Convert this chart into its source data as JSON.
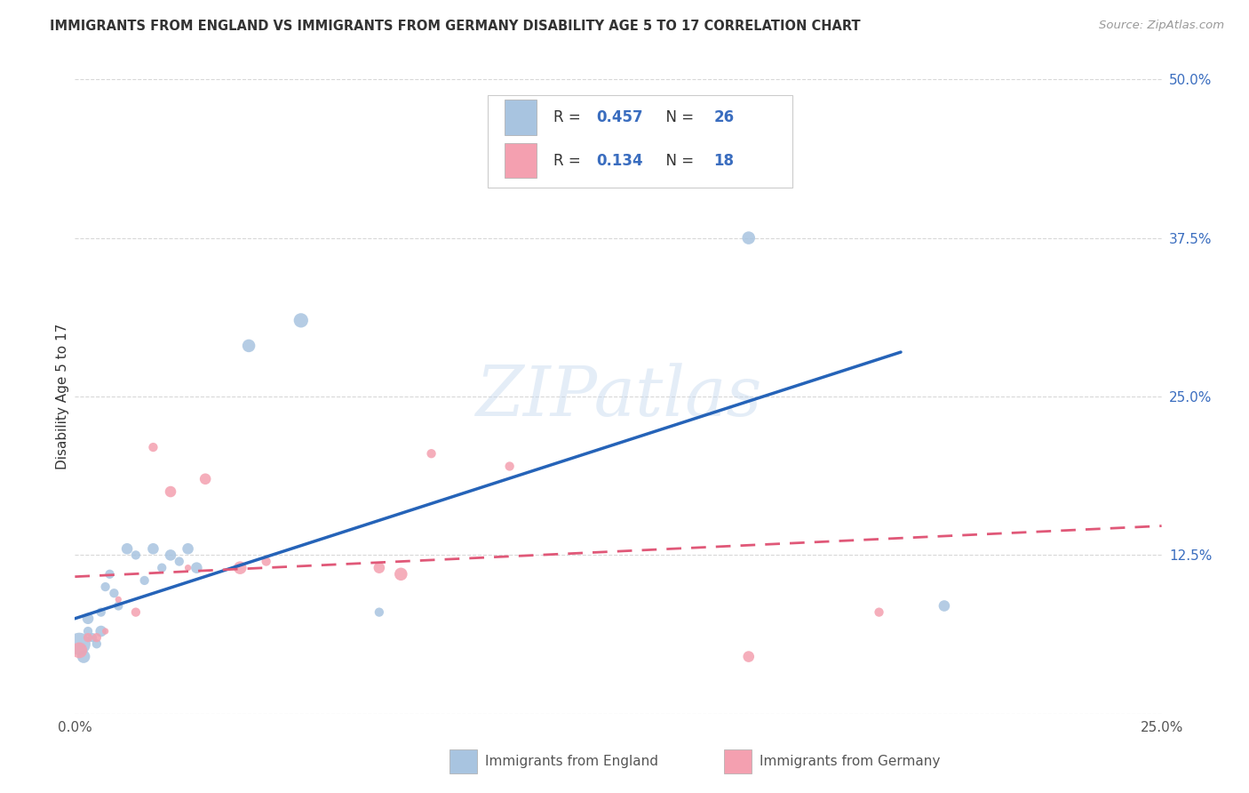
{
  "title": "IMMIGRANTS FROM ENGLAND VS IMMIGRANTS FROM GERMANY DISABILITY AGE 5 TO 17 CORRELATION CHART",
  "source": "Source: ZipAtlas.com",
  "ylabel": "Disability Age 5 to 17",
  "xlim": [
    0.0,
    0.25
  ],
  "ylim": [
    0.0,
    0.5
  ],
  "xticks": [
    0.0,
    0.05,
    0.1,
    0.15,
    0.2,
    0.25
  ],
  "yticks": [
    0.0,
    0.125,
    0.25,
    0.375,
    0.5
  ],
  "xticklabels": [
    "0.0%",
    "",
    "",
    "",
    "",
    "25.0%"
  ],
  "yticklabels": [
    "",
    "12.5%",
    "25.0%",
    "37.5%",
    "50.0%"
  ],
  "england_color": "#a8c4e0",
  "england_line_color": "#2563b8",
  "germany_color": "#f4a0b0",
  "germany_line_color": "#e05878",
  "tick_color": "#3a6dbf",
  "watermark_text": "ZIPatlas",
  "england_x": [
    0.001,
    0.002,
    0.003,
    0.003,
    0.004,
    0.005,
    0.006,
    0.006,
    0.007,
    0.008,
    0.009,
    0.01,
    0.012,
    0.014,
    0.016,
    0.018,
    0.02,
    0.022,
    0.024,
    0.026,
    0.028,
    0.04,
    0.052,
    0.07,
    0.155,
    0.2
  ],
  "england_y": [
    0.055,
    0.045,
    0.065,
    0.075,
    0.06,
    0.055,
    0.065,
    0.08,
    0.1,
    0.11,
    0.095,
    0.085,
    0.13,
    0.125,
    0.105,
    0.13,
    0.115,
    0.125,
    0.12,
    0.13,
    0.115,
    0.29,
    0.31,
    0.08,
    0.375,
    0.085
  ],
  "england_size": [
    600,
    200,
    100,
    150,
    100,
    100,
    150,
    100,
    100,
    100,
    100,
    100,
    150,
    100,
    100,
    150,
    100,
    150,
    100,
    150,
    150,
    200,
    250,
    100,
    200,
    150
  ],
  "germany_x": [
    0.001,
    0.003,
    0.005,
    0.007,
    0.01,
    0.014,
    0.018,
    0.022,
    0.026,
    0.03,
    0.038,
    0.044,
    0.07,
    0.075,
    0.082,
    0.1,
    0.155,
    0.185
  ],
  "germany_y": [
    0.05,
    0.06,
    0.06,
    0.065,
    0.09,
    0.08,
    0.21,
    0.175,
    0.115,
    0.185,
    0.115,
    0.12,
    0.115,
    0.11,
    0.205,
    0.195,
    0.045,
    0.08
  ],
  "germany_size": [
    300,
    100,
    100,
    50,
    50,
    100,
    100,
    150,
    50,
    150,
    200,
    100,
    150,
    200,
    100,
    100,
    150,
    100
  ],
  "england_trend_x": [
    0.0,
    0.19
  ],
  "england_trend_y": [
    0.075,
    0.285
  ],
  "germany_trend_x": [
    0.0,
    0.25
  ],
  "germany_trend_y": [
    0.108,
    0.148
  ],
  "background_color": "#ffffff",
  "grid_color": "#d8d8d8"
}
